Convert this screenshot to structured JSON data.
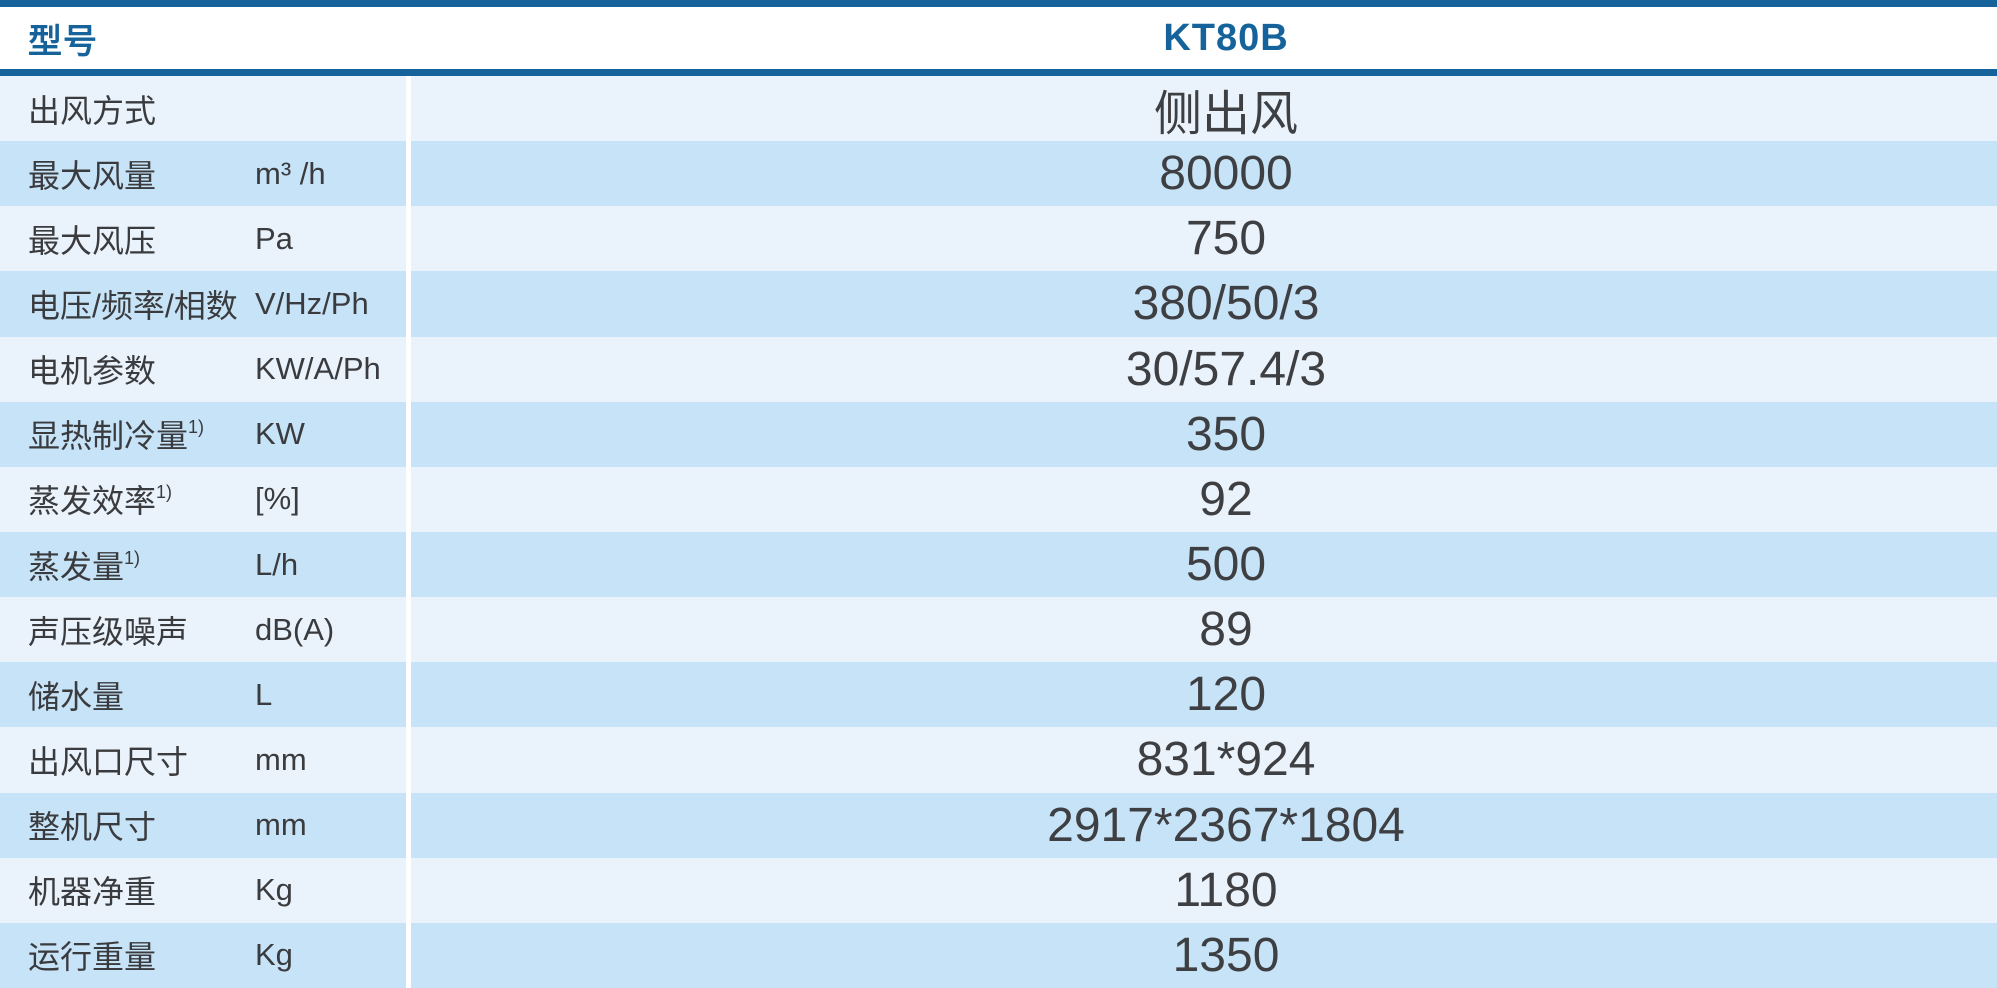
{
  "colors": {
    "accent_blue": "#15639a",
    "row_light": "#eaf3fb",
    "row_dark": "#c7e3f7",
    "text_gray": "#3e3f42",
    "divider_white": "#ffffff"
  },
  "table": {
    "header": {
      "model_label": "型号",
      "model_value": "KT80B"
    },
    "rows": [
      {
        "label": "出风方式",
        "sup": "",
        "unit": "",
        "value": "侧出风"
      },
      {
        "label": "最大风量",
        "sup": "",
        "unit": "m³ /h",
        "value": "80000"
      },
      {
        "label": "最大风压",
        "sup": "",
        "unit": "Pa",
        "value": "750"
      },
      {
        "label": "电压/频率/相数",
        "sup": "",
        "unit": "V/Hz/Ph",
        "value": "380/50/3"
      },
      {
        "label": "电机参数",
        "sup": "",
        "unit": "KW/A/Ph",
        "value": "30/57.4/3"
      },
      {
        "label": "显热制冷量",
        "sup": "1)",
        "unit": "KW",
        "value": "350"
      },
      {
        "label": "蒸发效率",
        "sup": "1)",
        "unit": "[%]",
        "value": "92"
      },
      {
        "label": "蒸发量",
        "sup": "1)",
        "unit": "L/h",
        "value": "500"
      },
      {
        "label": "声压级噪声",
        "sup": "",
        "unit": "dB(A)",
        "value": "89"
      },
      {
        "label": "储水量",
        "sup": "",
        "unit": "L",
        "value": "120"
      },
      {
        "label": "出风口尺寸",
        "sup": "",
        "unit": "mm",
        "value": "831*924"
      },
      {
        "label": "整机尺寸",
        "sup": "",
        "unit": "mm",
        "value": "2917*2367*1804"
      },
      {
        "label": "机器净重",
        "sup": "",
        "unit": "Kg",
        "value": "1180"
      },
      {
        "label": "运行重量",
        "sup": "",
        "unit": "Kg",
        "value": "1350"
      }
    ]
  }
}
